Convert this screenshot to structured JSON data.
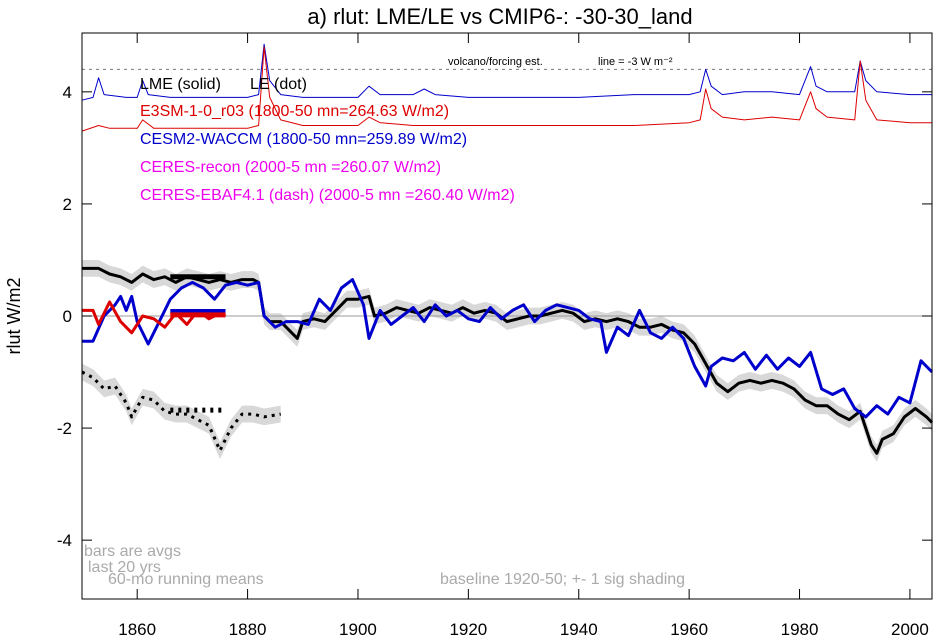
{
  "chart_data": {
    "type": "line",
    "title": "a) rlut: LME/LE vs CMIP6-: -30-30_land",
    "ylabel": "rlut W/m2",
    "xlim": [
      1850,
      2004
    ],
    "ylim": [
      -5.05,
      5.05
    ],
    "xticks": [
      1860,
      1880,
      1900,
      1920,
      1940,
      1960,
      1980,
      2000
    ],
    "yticks": [
      -4,
      -2,
      0,
      2,
      4
    ],
    "reference_lines": [
      {
        "value": 0,
        "style": "solid",
        "color": "#999999"
      },
      {
        "value": 4.4,
        "style": "dot",
        "color": "#777777"
      }
    ],
    "annotations": [
      "volcano/forcing est.",
      "line = -3 W m⁻²",
      "bars are avgs",
      "last 20 yrs",
      "60-mo running means",
      "baseline 1920-50; +- 1 sig shading"
    ],
    "legend": [
      {
        "text": "LME (solid)",
        "color": "#000000"
      },
      {
        "text": "LE (dot)",
        "color": "#000000"
      },
      {
        "text": "E3SM-1-0_r03 (1800-50 mn=264.63 W/m2)",
        "color": "#dd0000"
      },
      {
        "text": "CESM2-WACCM (1800-50 mn=259.89 W/m2)",
        "color": "#0000cc"
      },
      {
        "text": "CERES-recon (2000-5 mn =260.07 W/m2)",
        "color": "#ee00ee"
      },
      {
        "text": "CERES-EBAF4.1 (dash) (2000-5 mn =260.40 W/m2)",
        "color": "#ee00ee"
      }
    ],
    "series": [
      {
        "color": "#000000",
        "style": "solid",
        "weight": "thick",
        "shade": 0.15,
        "x": [
          1850,
          1853,
          1855,
          1857,
          1859,
          1861,
          1863,
          1865,
          1867,
          1869,
          1871,
          1873,
          1875,
          1877,
          1879,
          1881,
          1882,
          1883,
          1884,
          1886,
          1888,
          1889,
          1890,
          1892,
          1894,
          1896,
          1898,
          1900,
          1902,
          1903,
          1905,
          1907,
          1909,
          1911,
          1913,
          1915,
          1917,
          1919,
          1921,
          1923,
          1925,
          1927,
          1929,
          1931,
          1933,
          1935,
          1937,
          1939,
          1941,
          1943,
          1945,
          1947,
          1949,
          1951,
          1953,
          1955,
          1957,
          1959,
          1961,
          1963,
          1965,
          1967,
          1969,
          1971,
          1973,
          1975,
          1977,
          1979,
          1981,
          1983,
          1985,
          1987,
          1989,
          1991,
          1993,
          1994,
          1995,
          1997,
          1999,
          2001,
          2003,
          2004
        ],
        "values": [
          0.85,
          0.85,
          0.75,
          0.7,
          0.6,
          0.75,
          0.65,
          0.7,
          0.6,
          0.7,
          0.65,
          0.6,
          0.65,
          0.6,
          0.65,
          0.65,
          0.6,
          0.0,
          -0.1,
          -0.1,
          -0.3,
          -0.4,
          -0.1,
          -0.05,
          -0.1,
          0.1,
          0.3,
          0.3,
          0.35,
          0.0,
          0.05,
          0.15,
          0.1,
          0.05,
          0.15,
          0.1,
          0.05,
          0.15,
          0.05,
          0.1,
          0.05,
          -0.1,
          -0.05,
          0.0,
          0.0,
          0.05,
          0.1,
          0.05,
          -0.1,
          -0.05,
          -0.1,
          -0.05,
          -0.1,
          -0.2,
          -0.2,
          -0.15,
          -0.25,
          -0.3,
          -0.5,
          -0.85,
          -1.2,
          -1.35,
          -1.2,
          -1.15,
          -1.2,
          -1.15,
          -1.2,
          -1.3,
          -1.5,
          -1.6,
          -1.6,
          -1.75,
          -1.85,
          -1.7,
          -2.3,
          -2.45,
          -2.2,
          -2.1,
          -1.8,
          -1.65,
          -1.8,
          -1.9
        ]
      },
      {
        "color": "#000000",
        "style": "dot",
        "weight": "thick",
        "shade": 0.15,
        "x": [
          1850,
          1852,
          1854,
          1856,
          1858,
          1859,
          1861,
          1863,
          1865,
          1867,
          1869,
          1871,
          1873,
          1875,
          1877,
          1879,
          1881,
          1883,
          1886
        ],
        "values": [
          -1.0,
          -1.1,
          -1.3,
          -1.25,
          -1.55,
          -1.8,
          -1.45,
          -1.5,
          -1.7,
          -1.75,
          -1.75,
          -1.85,
          -1.95,
          -2.4,
          -2.0,
          -1.75,
          -1.75,
          -1.8,
          -1.75
        ]
      },
      {
        "color": "#0000cc",
        "style": "solid",
        "weight": "thick",
        "x": [
          1850,
          1852,
          1854,
          1856,
          1857,
          1858,
          1859,
          1860,
          1862,
          1864,
          1866,
          1868,
          1870,
          1872,
          1874,
          1876,
          1878,
          1880,
          1882,
          1883,
          1885,
          1887,
          1889,
          1891,
          1893,
          1895,
          1897,
          1899,
          1901,
          1902,
          1904,
          1906,
          1908,
          1910,
          1912,
          1914,
          1916,
          1918,
          1920,
          1922,
          1924,
          1926,
          1928,
          1930,
          1932,
          1934,
          1936,
          1938,
          1940,
          1942,
          1944,
          1945,
          1947,
          1949,
          1951,
          1953,
          1955,
          1957,
          1959,
          1961,
          1963,
          1964,
          1966,
          1968,
          1970,
          1972,
          1974,
          1976,
          1978,
          1980,
          1982,
          1984,
          1986,
          1988,
          1990,
          1992,
          1994,
          1996,
          1998,
          2000,
          2002,
          2004
        ],
        "values": [
          -0.45,
          -0.45,
          0.0,
          0.2,
          0.35,
          0.1,
          0.35,
          -0.1,
          -0.5,
          -0.1,
          0.3,
          0.5,
          0.6,
          0.5,
          0.3,
          0.55,
          0.6,
          0.55,
          0.6,
          0.0,
          -0.2,
          -0.1,
          -0.1,
          -0.15,
          0.3,
          0.1,
          0.5,
          0.65,
          0.2,
          -0.4,
          0.1,
          -0.15,
          0.0,
          0.15,
          -0.1,
          0.2,
          0.0,
          0.1,
          -0.05,
          -0.1,
          0.15,
          -0.05,
          0.1,
          0.2,
          -0.1,
          0.1,
          0.2,
          0.15,
          0.1,
          -0.05,
          -0.1,
          -0.65,
          -0.2,
          -0.35,
          0.1,
          -0.3,
          -0.4,
          -0.2,
          -0.4,
          -0.9,
          -1.25,
          -0.9,
          -0.75,
          -0.8,
          -0.65,
          -0.95,
          -0.7,
          -0.95,
          -0.75,
          -0.9,
          -0.65,
          -1.3,
          -1.4,
          -1.3,
          -1.65,
          -1.8,
          -1.6,
          -1.75,
          -1.45,
          -1.55,
          -0.8,
          -1.0
        ]
      },
      {
        "color": "#dd0000",
        "style": "solid",
        "weight": "thick",
        "x": [
          1850,
          1852,
          1853,
          1855,
          1857,
          1859,
          1861,
          1863,
          1865,
          1867,
          1869,
          1871,
          1873,
          1875,
          1876
        ],
        "values": [
          0.1,
          0.1,
          -0.15,
          0.25,
          -0.1,
          -0.3,
          0.0,
          -0.05,
          -0.2,
          0.05,
          -0.15,
          0.1,
          -0.05,
          0.05,
          0.0
        ]
      },
      {
        "color": "#0000cc",
        "style": "solid",
        "weight": "thin",
        "x": [
          1850,
          1852,
          1853,
          1854,
          1858,
          1860,
          1861,
          1862,
          1866,
          1870,
          1875,
          1880,
          1882,
          1883,
          1884,
          1886,
          1890,
          1895,
          1900,
          1902,
          1904,
          1910,
          1912,
          1914,
          1920,
          1930,
          1940,
          1950,
          1960,
          1962,
          1963,
          1964,
          1966,
          1970,
          1975,
          1980,
          1982,
          1983,
          1985,
          1990,
          1991,
          1992,
          1994,
          2000,
          2004
        ],
        "values": [
          3.85,
          3.9,
          4.25,
          3.95,
          3.9,
          3.9,
          4.2,
          3.95,
          3.9,
          3.9,
          3.9,
          3.9,
          3.95,
          4.85,
          4.2,
          3.95,
          3.9,
          3.9,
          3.9,
          4.1,
          3.95,
          3.95,
          4.05,
          3.95,
          3.9,
          3.9,
          3.9,
          3.95,
          3.95,
          4.0,
          4.4,
          4.1,
          3.95,
          4.0,
          4.0,
          3.95,
          4.45,
          4.1,
          4.0,
          4.0,
          4.55,
          4.2,
          4.0,
          3.95,
          3.95
        ]
      },
      {
        "color": "#dd0000",
        "style": "solid",
        "weight": "thin",
        "x": [
          1850,
          1853,
          1855,
          1860,
          1861,
          1863,
          1870,
          1880,
          1882,
          1883,
          1884,
          1886,
          1890,
          1900,
          1902,
          1904,
          1910,
          1920,
          1930,
          1940,
          1950,
          1960,
          1962,
          1963,
          1964,
          1966,
          1970,
          1975,
          1980,
          1982,
          1983,
          1985,
          1990,
          1991,
          1992,
          1994,
          2000,
          2004
        ],
        "values": [
          3.3,
          3.4,
          3.35,
          3.35,
          3.5,
          3.35,
          3.35,
          3.35,
          3.4,
          4.8,
          3.9,
          3.5,
          3.4,
          3.4,
          3.55,
          3.45,
          3.4,
          3.4,
          3.4,
          3.4,
          3.4,
          3.45,
          3.5,
          4.05,
          3.7,
          3.55,
          3.5,
          3.55,
          3.5,
          4.0,
          3.7,
          3.55,
          3.5,
          4.55,
          3.85,
          3.5,
          3.45,
          3.45
        ]
      }
    ],
    "avg_bars": [
      {
        "color": "#000000",
        "style": "solid",
        "x": [
          1866,
          1876
        ],
        "value": 0.7
      },
      {
        "color": "#0000cc",
        "style": "solid",
        "x": [
          1866,
          1876
        ],
        "value": 0.08
      },
      {
        "color": "#dd0000",
        "style": "solid",
        "x": [
          1866,
          1876
        ],
        "value": 0.02
      },
      {
        "color": "#000000",
        "style": "dot",
        "x": [
          1866,
          1876
        ],
        "value": -1.68
      }
    ]
  }
}
